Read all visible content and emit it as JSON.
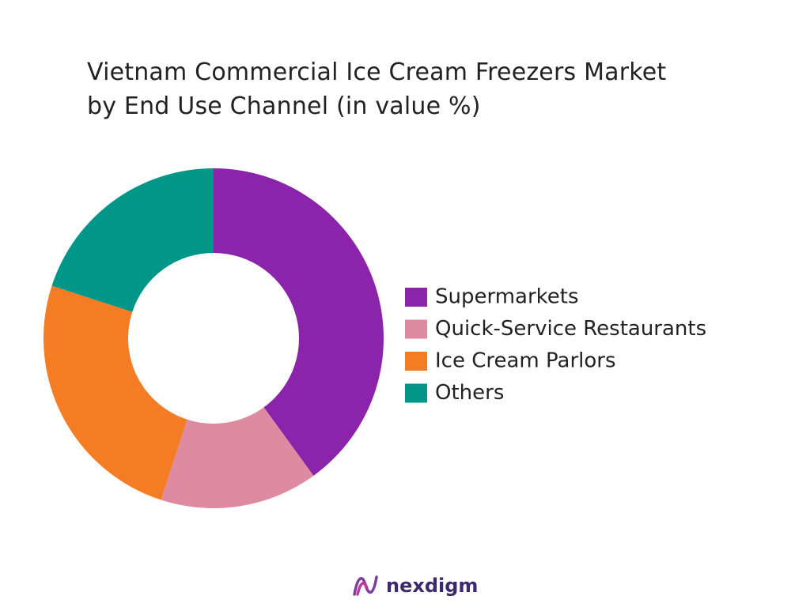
{
  "chart_data": {
    "type": "donut",
    "title": "Vietnam Commercial Ice Cream Freezers Market\nby  End Use Channel (in value %)",
    "categories": [
      "Supermarkets",
      "Quick-Service Restaurants",
      "Ice Cream Parlors",
      "Others"
    ],
    "values": [
      40,
      15,
      25,
      20
    ],
    "colors": [
      "#8b24aa",
      "#de8aa0",
      "#f47c24",
      "#009688"
    ],
    "legend": "right"
  },
  "logo": {
    "text": "nexdigm"
  }
}
